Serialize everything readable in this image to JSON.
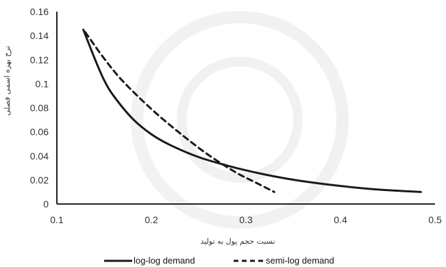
{
  "chart_data": {
    "type": "line",
    "title": "",
    "xlabel": "نسبت حجم پول به تولید",
    "ylabel": "نرخ بهره اسمی فصلی",
    "xlim": [
      0.1,
      0.5
    ],
    "ylim": [
      0,
      0.16
    ],
    "x_ticks": [
      "0.1",
      "0.2",
      "0.3",
      "0.4",
      "0.5"
    ],
    "y_ticks": [
      "0",
      "0.02",
      "0.04",
      "0.06",
      "0.08",
      "0.1",
      "0.12",
      "0.14",
      "0.16"
    ],
    "grid": false,
    "legend_position": "bottom",
    "series": [
      {
        "name": "log-log demand",
        "style": "solid",
        "color": "#1a1a1a",
        "x": [
          0.128,
          0.14,
          0.15,
          0.16,
          0.18,
          0.2,
          0.22,
          0.25,
          0.28,
          0.3,
          0.33,
          0.36,
          0.4,
          0.44,
          0.485
        ],
        "y": [
          0.145,
          0.121,
          0.103,
          0.09,
          0.071,
          0.058,
          0.049,
          0.039,
          0.032,
          0.028,
          0.023,
          0.019,
          0.015,
          0.012,
          0.01
        ]
      },
      {
        "name": "semi-log demand",
        "style": "dashed",
        "color": "#1a1a1a",
        "x": [
          0.13,
          0.15,
          0.17,
          0.2,
          0.23,
          0.26,
          0.29,
          0.31,
          0.33
        ],
        "y": [
          0.143,
          0.121,
          0.102,
          0.079,
          0.059,
          0.041,
          0.026,
          0.018,
          0.01
        ]
      }
    ]
  }
}
